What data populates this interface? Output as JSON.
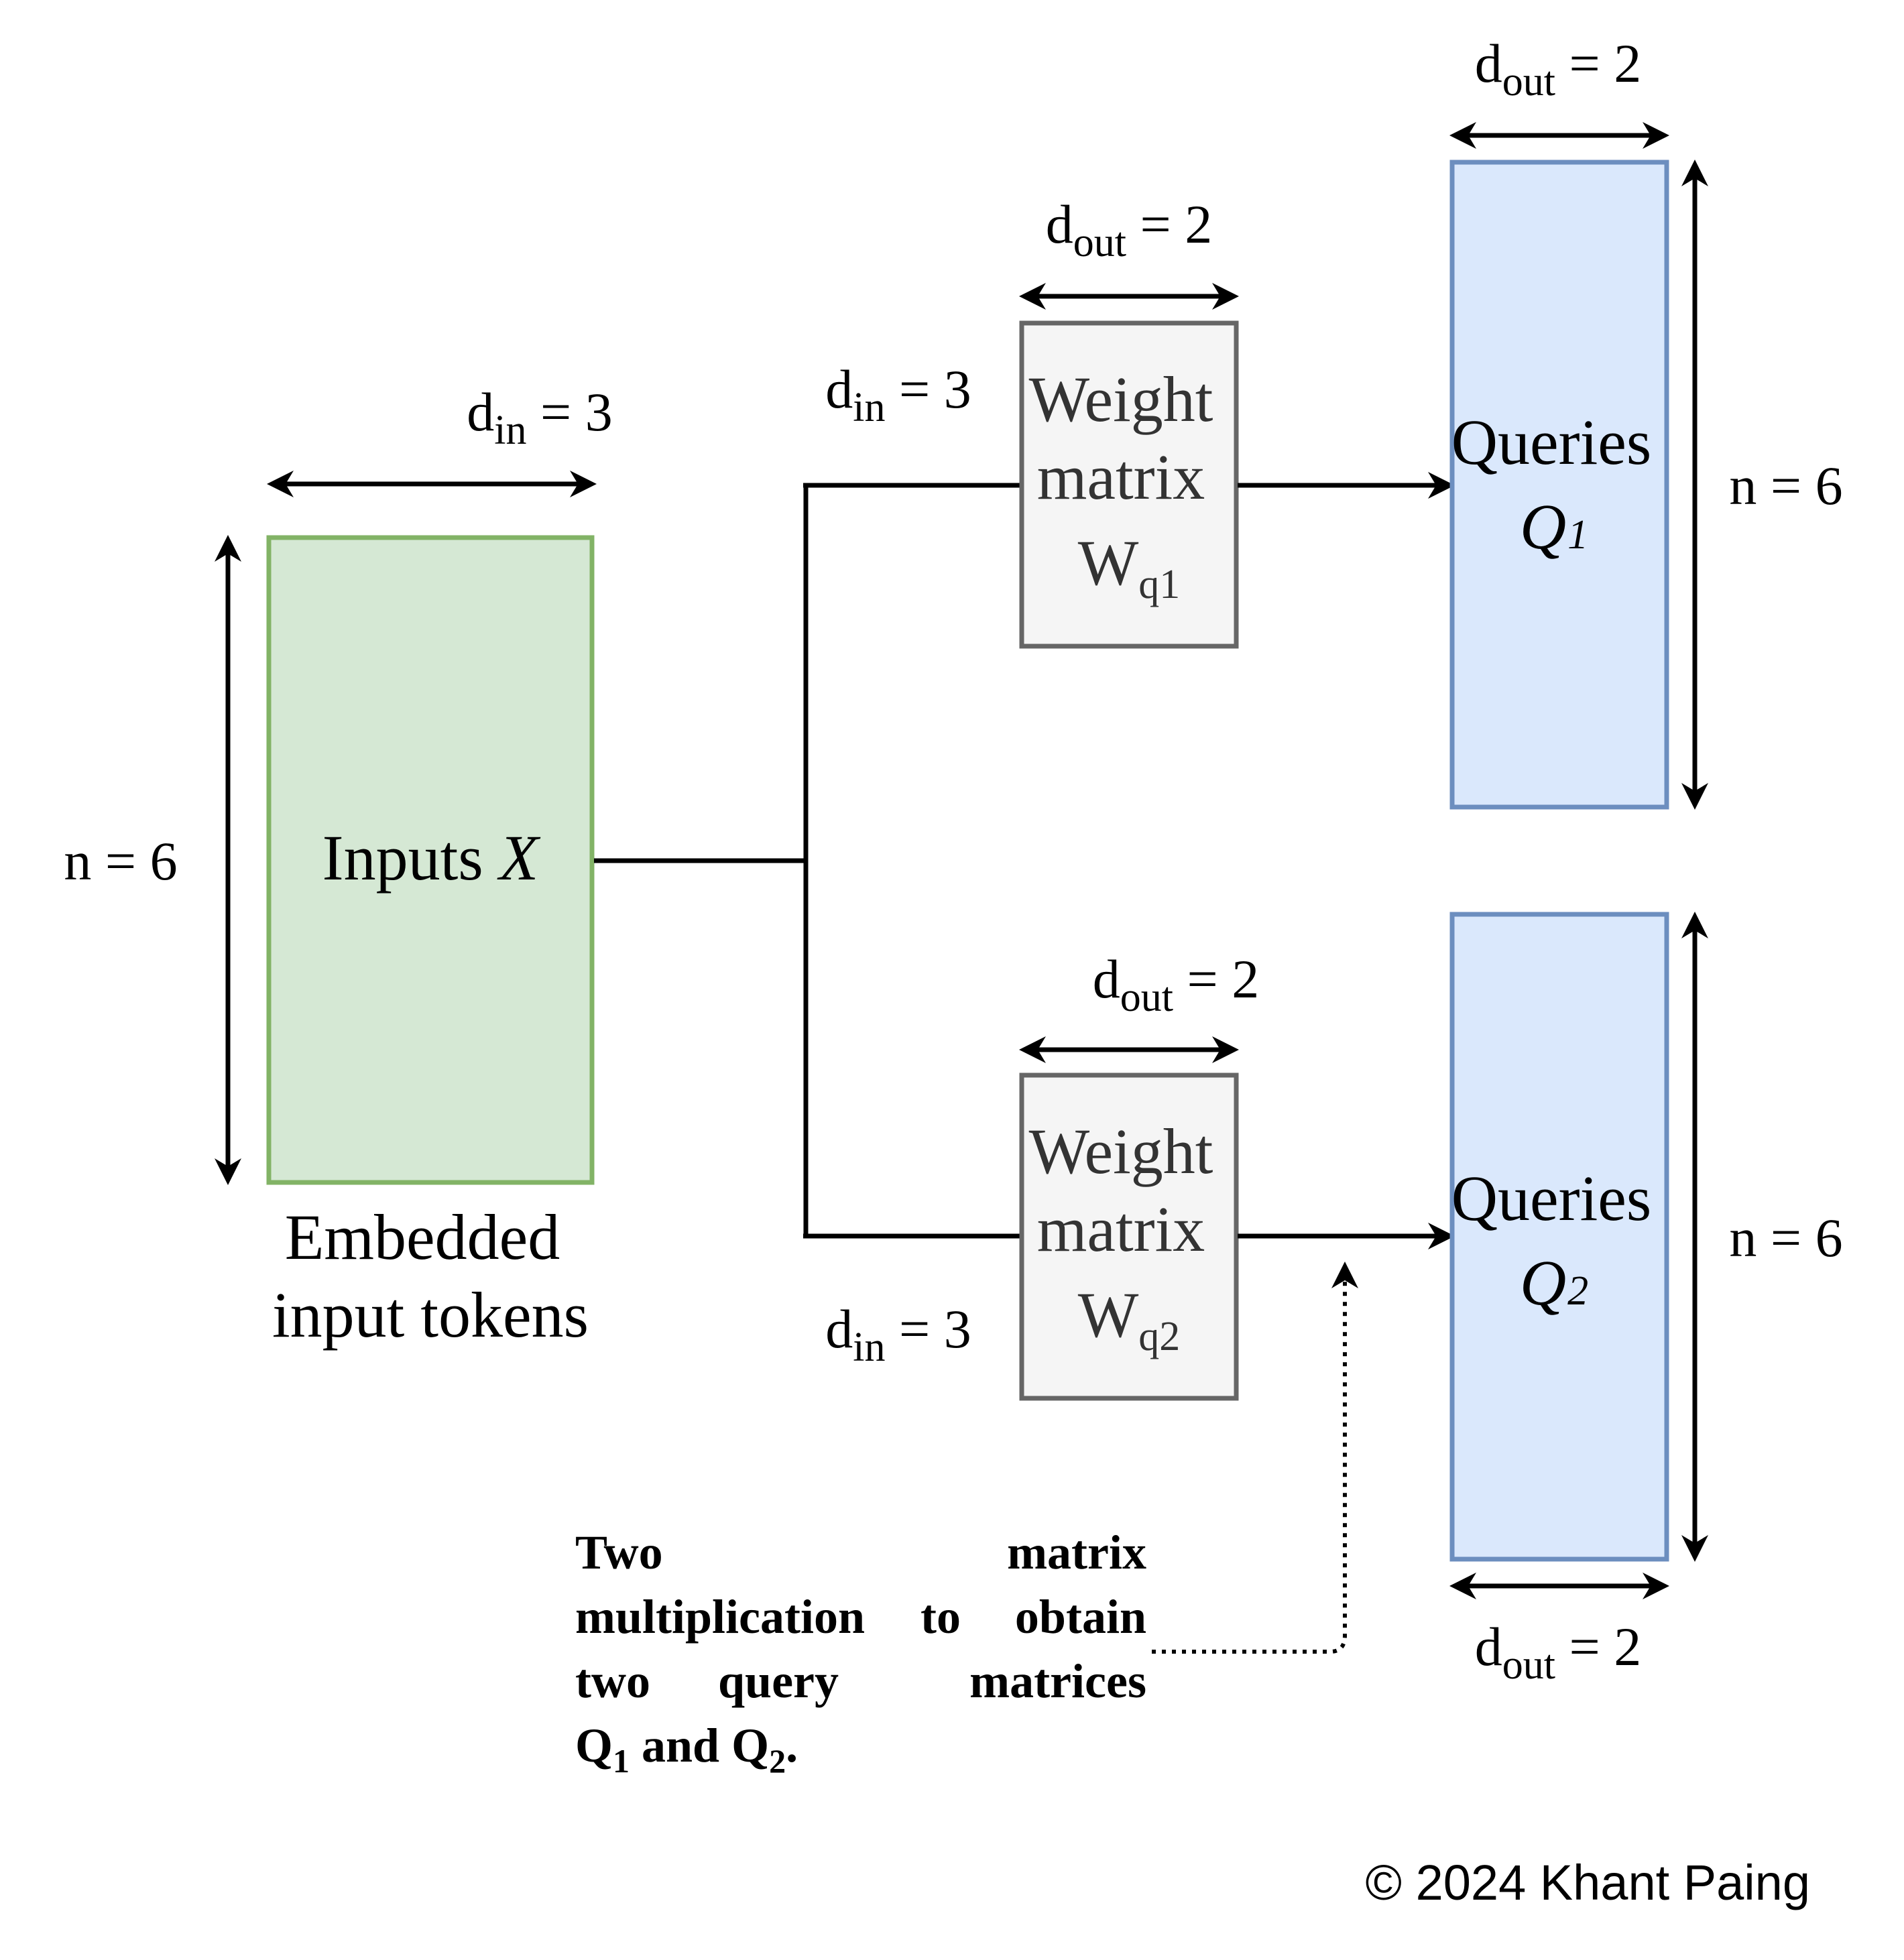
{
  "colors": {
    "input_fill": "#d5e8d4",
    "input_stroke": "#82b366",
    "weight_fill": "#f5f5f5",
    "weight_stroke": "#666666",
    "weight_text": "#333333",
    "query_fill": "#dae8fc",
    "query_stroke": "#6c8ebf",
    "line": "#000000"
  },
  "inputs": {
    "label_main": "Inputs ",
    "label_var": "X",
    "caption_line1": "Embedded",
    "caption_line2": "input tokens",
    "width_label": {
      "base": "d",
      "sub": "in",
      "rest": " = 3"
    },
    "height_label": "n = 6"
  },
  "weight_q1": {
    "line1": "Weight",
    "line2": "matrix",
    "w_base": "W",
    "w_sub": "q1",
    "width_label": {
      "base": "d",
      "sub": "out",
      "rest": " = 2"
    },
    "din_label": {
      "base": "d",
      "sub": "in",
      "rest": " = 3"
    }
  },
  "weight_q2": {
    "line1": "Weight",
    "line2": "matrix",
    "w_base": "W",
    "w_sub": "q2",
    "width_label": {
      "base": "d",
      "sub": "out",
      "rest": " = 2"
    },
    "din_label": {
      "base": "d",
      "sub": "in",
      "rest": " = 3"
    }
  },
  "queries_1": {
    "line1": "Queries",
    "var_base": "Q",
    "var_sub": "1",
    "width_label": {
      "base": "d",
      "sub": "out",
      "rest": " = 2"
    },
    "height_label": "n = 6"
  },
  "queries_2": {
    "line1": "Queries",
    "var_base": "Q",
    "var_sub": "2",
    "width_label": {
      "base": "d",
      "sub": "out",
      "rest": " = 2"
    },
    "height_label": "n = 6"
  },
  "note": {
    "line1_a": "Two",
    "line1_b": "matrix",
    "line2_a": "multiplication",
    "line2_b": "to",
    "line2_c": "obtain",
    "line3_a": "two",
    "line3_b": "query",
    "line3_c": "matrices",
    "line4_q": "Q",
    "line4_s1": "1",
    "line4_mid": " and Q",
    "line4_s2": "2",
    "line4_end": "."
  },
  "copyright": "© 2024 Khant Paing"
}
